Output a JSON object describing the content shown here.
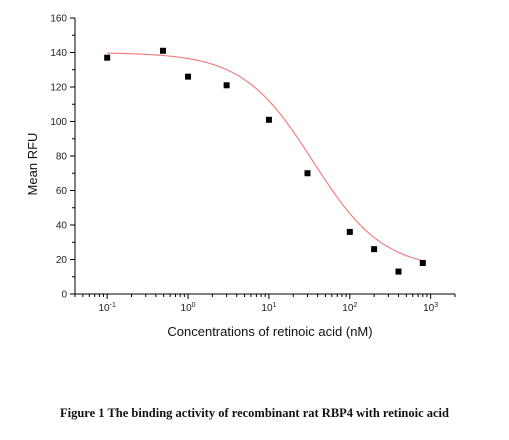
{
  "chart_data": {
    "type": "scatter",
    "caption": "Figure 1 The binding activity of recombinant rat RBP4 with retinoic acid",
    "xlabel": "Concentrations of retinoic acid (nM)",
    "ylabel": "Mean RFU",
    "x_scale": "log",
    "xlim": [
      0.04,
      2000
    ],
    "ylim": [
      0,
      160
    ],
    "x_ticks": [
      {
        "value": 0.1,
        "base": "10",
        "exp": "-1"
      },
      {
        "value": 1,
        "base": "10",
        "exp": "0"
      },
      {
        "value": 10,
        "base": "10",
        "exp": "1"
      },
      {
        "value": 100,
        "base": "10",
        "exp": "2"
      },
      {
        "value": 1000,
        "base": "10",
        "exp": "3"
      }
    ],
    "y_ticks": [
      "0",
      "20",
      "40",
      "60",
      "80",
      "100",
      "120",
      "140",
      "160"
    ],
    "grid": false,
    "series": [
      {
        "kind": "points",
        "marker": "square",
        "color": "#000000",
        "x": [
          0.1,
          0.49,
          1,
          3,
          10,
          30,
          100,
          200,
          400,
          800
        ],
        "y": [
          137,
          141,
          126,
          121,
          101,
          70,
          36,
          26,
          13,
          18
        ]
      },
      {
        "kind": "fit",
        "color": "#f08080",
        "model": "four-parameter logistic",
        "top": 140,
        "bottom": 14,
        "ic50": 35,
        "hill": 1.0,
        "x_range": [
          0.1,
          800
        ]
      }
    ]
  }
}
